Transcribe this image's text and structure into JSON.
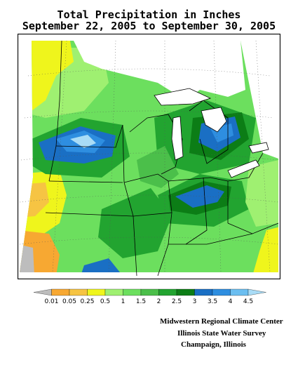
{
  "title": {
    "line1": "Total Precipitation in Inches",
    "line2": "September 22, 2005 to September 30, 2005"
  },
  "legend": {
    "labels": [
      "0.01",
      "0.05",
      "0.25",
      "0.5",
      "1",
      "1.5",
      "2",
      "2.5",
      "3",
      "3.5",
      "4",
      "4.5"
    ],
    "colors": [
      "#bdbdbd",
      "#f7a832",
      "#f6c443",
      "#eff51c",
      "#9ff071",
      "#6cdf5e",
      "#4bbf4a",
      "#22a430",
      "#0c7d16",
      "#1a6fc4",
      "#2e8ee0",
      "#6bbef0",
      "#a9dcf6"
    ]
  },
  "credits": {
    "line1": "Midwestern Regional Climate Center",
    "line2": "Illinois State Water Survey",
    "line3": "Champaign, Illinois"
  },
  "colors": {
    "no_data_gray": "#bdbdbd",
    "background": "#ffffff",
    "outline": "#000000"
  }
}
